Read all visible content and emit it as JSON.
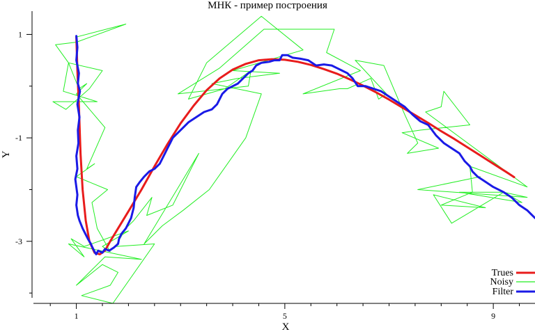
{
  "chart_data": {
    "type": "line",
    "title": "МНК - пример построения",
    "xlabel": "X",
    "ylabel": "Y",
    "xlim": [
      0.15,
      9.8
    ],
    "ylim": [
      -4.2,
      1.45
    ],
    "xticks": [
      1,
      5,
      9
    ],
    "xtick_labels": [
      "1",
      "5",
      "9"
    ],
    "yticks": [
      1,
      -1,
      -3
    ],
    "ytick_labels": [
      "1",
      "-1",
      "-3"
    ],
    "xminor": [
      0.5,
      1.5,
      2,
      2.5,
      3,
      3.5,
      4,
      4.5,
      5.5,
      6,
      6.5,
      7,
      7.5,
      8,
      8.5,
      9.5
    ],
    "yminor": [
      0,
      -2,
      -4
    ],
    "grid": false,
    "legend_position": "bottom-right",
    "series": [
      {
        "name": "Trues",
        "color": "#e81c1c",
        "width": 3,
        "x": [
          1.0,
          1.02,
          1.05,
          1.08,
          1.12,
          1.18,
          1.25,
          1.35,
          1.45,
          1.55,
          1.65,
          1.8,
          2.0,
          2.25,
          2.5,
          2.75,
          3.0,
          3.25,
          3.5,
          3.75,
          4.0,
          4.25,
          4.5,
          4.75,
          5.0,
          5.25,
          5.5,
          5.75,
          6.0,
          6.25,
          6.5,
          6.75,
          7.0,
          7.25,
          7.5,
          7.75,
          8.0,
          8.25,
          8.5,
          8.75,
          9.0,
          9.25,
          9.4
        ],
        "y": [
          0.95,
          0.3,
          -0.4,
          -1.3,
          -2.0,
          -2.6,
          -3.0,
          -3.22,
          -3.25,
          -3.18,
          -3.0,
          -2.75,
          -2.42,
          -2.0,
          -1.55,
          -1.12,
          -0.72,
          -0.38,
          -0.08,
          0.15,
          0.32,
          0.43,
          0.5,
          0.52,
          0.51,
          0.47,
          0.41,
          0.33,
          0.24,
          0.13,
          0.01,
          -0.12,
          -0.26,
          -0.41,
          -0.56,
          -0.71,
          -0.87,
          -1.02,
          -1.18,
          -1.34,
          -1.5,
          -1.66,
          -1.76
        ]
      },
      {
        "name": "Noisy",
        "color": "#22ee22",
        "width": 1,
        "x": [
          1.0,
          1.95,
          1.0,
          0.6,
          0.85,
          1.5,
          1.25,
          0.8,
          0.55,
          1.4,
          0.75,
          0.85,
          1.05,
          1.2,
          1.0,
          1.55,
          1.2,
          1.35,
          1.0,
          1.6,
          1.3,
          1.4,
          1.65,
          1.5,
          2.0,
          1.15,
          0.9,
          1.15,
          0.85,
          2.25,
          1.55,
          1.25,
          1.0,
          1.5,
          1.8,
          1.65,
          1.1,
          1.7,
          2.5,
          1.75,
          1.95,
          2.1,
          2.45,
          2.35,
          2.85,
          3.35,
          2.3,
          2.65,
          3.05,
          3.55,
          4.25,
          4.55,
          3.6,
          4.1,
          4.9,
          4.0,
          5.35,
          4.55,
          3.5,
          3.15,
          3.85,
          4.35,
          4.3,
          2.95,
          3.75,
          4.6,
          5.95,
          5.8,
          6.45,
          5.35,
          6.05,
          6.2,
          6.65,
          6.8,
          6.95,
          6.35,
          6.9,
          7.3,
          7.55,
          7.35,
          7.95,
          7.25,
          7.6,
          8.55,
          8.05,
          8.0,
          7.7,
          9.65,
          8.55,
          8.6,
          8.0,
          8.85,
          7.85,
          8.2,
          9.2,
          8.35,
          9.55,
          9.2,
          9.65,
          7.55,
          8.75
        ],
        "y": [
          0.95,
          1.2,
          0.85,
          0.8,
          0.45,
          0.3,
          -0.05,
          -0.45,
          -0.3,
          -0.3,
          -0.1,
          0.45,
          -0.05,
          0.05,
          -0.15,
          -0.8,
          -1.6,
          -1.5,
          -1.75,
          -2.0,
          -2.25,
          -2.75,
          -3.2,
          -3.1,
          -2.8,
          -3.1,
          -2.95,
          -3.3,
          -3.05,
          -3.35,
          -3.3,
          -3.6,
          -3.85,
          -3.45,
          -3.6,
          -3.85,
          -4.05,
          -4.2,
          -3.05,
          -3.1,
          -2.75,
          -2.6,
          -2.15,
          -2.5,
          -2.3,
          -1.3,
          -3.05,
          -2.7,
          -2.4,
          -2.0,
          -1.0,
          -0.15,
          0.05,
          0.15,
          0.25,
          0.3,
          0.7,
          1.35,
          0.45,
          -0.25,
          -0.05,
          0.3,
          0.0,
          -0.15,
          0.35,
          1.1,
          1.1,
          0.65,
          0.3,
          -0.15,
          -0.05,
          -0.05,
          0.15,
          -0.25,
          -0.15,
          0.5,
          0.4,
          -0.55,
          -1.1,
          -1.3,
          -1.2,
          -0.9,
          -0.85,
          -0.75,
          -0.1,
          -0.4,
          -0.5,
          -1.95,
          -1.55,
          -2.05,
          -2.3,
          -2.35,
          -2.1,
          -2.65,
          -2.05,
          -2.05,
          -2.25,
          -2.05,
          -2.15,
          -2.0,
          -1.75
        ]
      },
      {
        "name": "Filter",
        "color": "#1a1ae6",
        "width": 3,
        "x": [
          1.0,
          1.02,
          1.0,
          1.05,
          1.03,
          1.07,
          1.02,
          1.06,
          1.03,
          1.04,
          1.0,
          1.02,
          0.98,
          1.02,
          1.0,
          1.03,
          1.06,
          1.12,
          1.17,
          1.22,
          1.28,
          1.3,
          1.35,
          1.38,
          1.42,
          1.5,
          1.55,
          1.63,
          1.72,
          1.8,
          1.82,
          1.87,
          1.95,
          2.05,
          2.1,
          2.12,
          2.15,
          2.22,
          2.3,
          2.4,
          2.5,
          2.6,
          2.7,
          2.75,
          2.8,
          2.85,
          2.95,
          3.05,
          3.15,
          3.3,
          3.45,
          3.6,
          3.7,
          3.75,
          3.8,
          3.9,
          4.0,
          4.1,
          4.2,
          4.3,
          4.38,
          4.45,
          4.55,
          4.7,
          4.8,
          4.9,
          4.95,
          5.05,
          5.15,
          5.3,
          5.45,
          5.6,
          5.75,
          5.9,
          6.0,
          6.1,
          6.2,
          6.3,
          6.4,
          6.55,
          6.7,
          6.85,
          7.0,
          7.15,
          7.3,
          7.45,
          7.6,
          7.75,
          7.9,
          8.05,
          8.2,
          8.35,
          8.45,
          8.55,
          8.6,
          8.7,
          8.85,
          9.0,
          9.2,
          9.35,
          9.5,
          9.65,
          9.8
        ],
        "y": [
          0.97,
          0.75,
          0.5,
          0.25,
          0.05,
          -0.1,
          -0.35,
          -0.6,
          -0.85,
          -1.1,
          -1.35,
          -1.6,
          -1.8,
          -2.1,
          -2.3,
          -2.5,
          -2.6,
          -2.75,
          -2.85,
          -2.95,
          -3.05,
          -3.1,
          -3.2,
          -3.25,
          -3.18,
          -3.22,
          -3.15,
          -3.18,
          -3.12,
          -3.05,
          -2.95,
          -2.85,
          -2.75,
          -2.55,
          -2.35,
          -2.15,
          -1.95,
          -1.85,
          -1.75,
          -1.65,
          -1.6,
          -1.5,
          -1.3,
          -1.2,
          -1.1,
          -1.0,
          -0.9,
          -0.8,
          -0.7,
          -0.6,
          -0.5,
          -0.45,
          -0.35,
          -0.25,
          -0.15,
          -0.05,
          0.0,
          0.05,
          0.15,
          0.25,
          0.3,
          0.4,
          0.45,
          0.47,
          0.5,
          0.5,
          0.6,
          0.6,
          0.55,
          0.53,
          0.5,
          0.4,
          0.42,
          0.4,
          0.35,
          0.3,
          0.25,
          0.15,
          0.0,
          0.0,
          -0.05,
          -0.1,
          -0.2,
          -0.3,
          -0.4,
          -0.55,
          -0.68,
          -0.75,
          -0.95,
          -1.1,
          -1.2,
          -1.3,
          -1.45,
          -1.55,
          -1.65,
          -1.75,
          -1.85,
          -1.95,
          -2.05,
          -2.15,
          -2.3,
          -2.4,
          -2.55
        ]
      }
    ]
  }
}
